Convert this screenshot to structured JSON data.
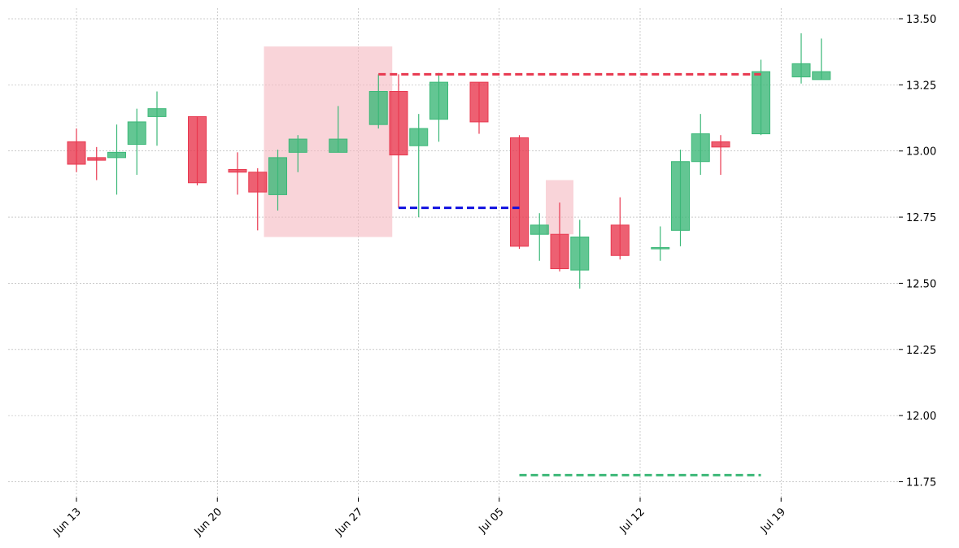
{
  "chart_data": {
    "type": "candlestick",
    "x_ticks": [
      "Jun 13",
      "Jun 20",
      "Jun 27",
      "Jul 05",
      "Jul 12",
      "Jul 19"
    ],
    "y_ticks": [
      "11.75",
      "12.00",
      "12.25",
      "12.50",
      "12.75",
      "13.00",
      "13.25",
      "13.50"
    ],
    "ylim": [
      11.69,
      13.54
    ],
    "grid": true,
    "colors": {
      "up": "#3cb878",
      "down": "#e8384f",
      "highlight": "#f5b7c0"
    },
    "candles": [
      {
        "date": "2021-06-13",
        "open": 13.035,
        "high": 13.085,
        "low": 12.92,
        "close": 12.95
      },
      {
        "date": "2021-06-14",
        "open": 12.975,
        "high": 13.015,
        "low": 12.89,
        "close": 12.965
      },
      {
        "date": "2021-06-15",
        "open": 12.975,
        "high": 13.1,
        "low": 12.835,
        "close": 12.995
      },
      {
        "date": "2021-06-16",
        "open": 13.025,
        "high": 13.16,
        "low": 12.91,
        "close": 13.11
      },
      {
        "date": "2021-06-17",
        "open": 13.13,
        "high": 13.225,
        "low": 13.02,
        "close": 13.16
      },
      {
        "date": "2021-06-19",
        "open": 13.13,
        "high": 13.13,
        "low": 12.87,
        "close": 12.88
      },
      {
        "date": "2021-06-21",
        "open": 12.93,
        "high": 12.995,
        "low": 12.835,
        "close": 12.92
      },
      {
        "date": "2021-06-22",
        "open": 12.92,
        "high": 12.935,
        "low": 12.7,
        "close": 12.845
      },
      {
        "date": "2021-06-23",
        "open": 12.835,
        "high": 13.005,
        "low": 12.775,
        "close": 12.975
      },
      {
        "date": "2021-06-24",
        "open": 12.995,
        "high": 13.06,
        "low": 12.92,
        "close": 13.045
      },
      {
        "date": "2021-06-26",
        "open": 12.995,
        "high": 13.17,
        "low": 12.995,
        "close": 13.045
      },
      {
        "date": "2021-06-28",
        "open": 13.1,
        "high": 13.29,
        "low": 13.085,
        "close": 13.225
      },
      {
        "date": "2021-06-29",
        "open": 13.225,
        "high": 13.29,
        "low": 12.785,
        "close": 12.985
      },
      {
        "date": "2021-06-30",
        "open": 13.02,
        "high": 13.14,
        "low": 12.75,
        "close": 13.085
      },
      {
        "date": "2021-07-01",
        "open": 13.12,
        "high": 13.295,
        "low": 13.035,
        "close": 13.26
      },
      {
        "date": "2021-07-03",
        "open": 13.26,
        "high": 13.26,
        "low": 13.065,
        "close": 13.11
      },
      {
        "date": "2021-07-05",
        "open": 13.05,
        "high": 13.06,
        "low": 12.63,
        "close": 12.64
      },
      {
        "date": "2021-07-06",
        "open": 12.685,
        "high": 12.765,
        "low": 12.585,
        "close": 12.72
      },
      {
        "date": "2021-07-07",
        "open": 12.685,
        "high": 12.805,
        "low": 12.545,
        "close": 12.555
      },
      {
        "date": "2021-07-08",
        "open": 12.55,
        "high": 12.74,
        "low": 12.48,
        "close": 12.675
      },
      {
        "date": "2021-07-10",
        "open": 12.72,
        "high": 12.825,
        "low": 12.59,
        "close": 12.605
      },
      {
        "date": "2021-07-12",
        "open": 12.635,
        "high": 12.715,
        "low": 12.585,
        "close": 12.635
      },
      {
        "date": "2021-07-13",
        "open": 12.7,
        "high": 13.005,
        "low": 12.64,
        "close": 12.96
      },
      {
        "date": "2021-07-14",
        "open": 12.96,
        "high": 13.14,
        "low": 12.91,
        "close": 13.065
      },
      {
        "date": "2021-07-15",
        "open": 13.035,
        "high": 13.06,
        "low": 12.91,
        "close": 13.015
      },
      {
        "date": "2021-07-17",
        "open": 13.065,
        "high": 13.345,
        "low": 13.06,
        "close": 13.3
      },
      {
        "date": "2021-07-19",
        "open": 13.28,
        "high": 13.445,
        "low": 13.255,
        "close": 13.33
      },
      {
        "date": "2021-07-20",
        "open": 13.27,
        "high": 13.425,
        "low": 13.27,
        "close": 13.3
      }
    ],
    "highlight_zones": [
      {
        "from": "2021-06-23",
        "to": "2021-06-28",
        "low": 12.675,
        "high": 13.395
      },
      {
        "from": "2021-07-07",
        "to": "2021-07-07",
        "low": 12.685,
        "high": 12.89
      }
    ],
    "levels": [
      {
        "from": "2021-06-28",
        "to": "2021-07-17",
        "value": 13.29,
        "color": "#e8384f"
      },
      {
        "from": "2021-06-29",
        "to": "2021-07-05",
        "value": 12.785,
        "color": "#1010e0"
      },
      {
        "from": "2021-07-05",
        "to": "2021-07-17",
        "value": 11.775,
        "color": "#3cb878"
      }
    ]
  }
}
